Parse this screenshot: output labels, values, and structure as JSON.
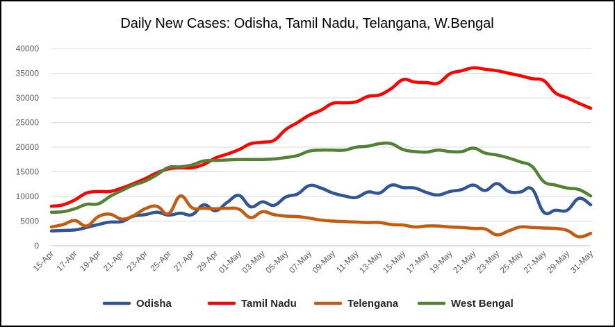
{
  "chart_data": {
    "type": "line",
    "title": "Daily New Cases: Odisha, Tamil Nadu, Telangana, W.Bengal",
    "xlabel": "",
    "ylabel": "",
    "ylim": [
      0,
      40000
    ],
    "yticks": [
      "0",
      "5000",
      "10000",
      "15000",
      "20000",
      "25000",
      "30000",
      "35000",
      "40000"
    ],
    "grid": true,
    "legend": "bottom",
    "x": [
      "15-Apr",
      "16-Apr",
      "17-Apr",
      "18-Apr",
      "19-Apr",
      "20-Apr",
      "21-Apr",
      "22-Apr",
      "23-Apr",
      "24-Apr",
      "25-Apr",
      "26-Apr",
      "27-Apr",
      "28-Apr",
      "29-Apr",
      "30-Apr",
      "01-May",
      "02-May",
      "03-May",
      "04-May",
      "05-May",
      "06-May",
      "07-May",
      "08-May",
      "09-May",
      "10-May",
      "11-May",
      "12-May",
      "13-May",
      "14-May",
      "15-May",
      "16-May",
      "17-May",
      "18-May",
      "19-May",
      "20-May",
      "21-May",
      "22-May",
      "23-May",
      "24-May",
      "25-May",
      "26-May",
      "27-May",
      "28-May",
      "29-May",
      "30-May",
      "31-May"
    ],
    "xtick_labels": [
      "15-Apr",
      "17-Apr",
      "19-Apr",
      "21-Apr",
      "23-Apr",
      "25-Apr",
      "27-Apr",
      "29-Apr",
      "01-May",
      "03-May",
      "05-May",
      "07-May",
      "09-May",
      "11-May",
      "13-May",
      "15-May",
      "17-May",
      "19-May",
      "21-May",
      "23-May",
      "25-May",
      "27-May",
      "29-May",
      "31-May"
    ],
    "series": [
      {
        "name": "Odisha",
        "color": "#2f5597",
        "values": [
          3000,
          3100,
          3200,
          3700,
          4300,
          4800,
          4900,
          6000,
          6300,
          6800,
          6200,
          6600,
          6300,
          8300,
          7100,
          8800,
          10200,
          7900,
          8900,
          8200,
          9900,
          10500,
          12200,
          11700,
          10700,
          10100,
          9800,
          10900,
          10700,
          12300,
          11800,
          11700,
          10800,
          10300,
          11000,
          11400,
          12300,
          11200,
          12600,
          11000,
          10900,
          11500,
          6800,
          7200,
          7200,
          9600,
          8300
        ]
      },
      {
        "name": "Tamil Nadu",
        "color": "#ff0000",
        "values": [
          8000,
          8300,
          9300,
          10700,
          11000,
          11000,
          11700,
          12600,
          13600,
          14800,
          15600,
          15800,
          15800,
          16500,
          17800,
          18600,
          19500,
          20700,
          21000,
          21400,
          23600,
          25000,
          26500,
          27500,
          28900,
          29000,
          29200,
          30300,
          30600,
          31900,
          33700,
          33200,
          33100,
          33000,
          34900,
          35500,
          36100,
          35800,
          35500,
          35000,
          34500,
          33900,
          33500,
          31000,
          30000,
          28900,
          27900
        ]
      },
      {
        "name": "Telengana",
        "color": "#c55a11",
        "values": [
          3800,
          4300,
          5100,
          4000,
          5900,
          6400,
          5400,
          6100,
          7500,
          8000,
          6500,
          10100,
          7700,
          7600,
          7500,
          7600,
          7400,
          5700,
          6900,
          6300,
          6000,
          5900,
          5600,
          5200,
          5000,
          4900,
          4800,
          4700,
          4700,
          4300,
          4200,
          3800,
          4000,
          4000,
          3800,
          3700,
          3500,
          3400,
          2200,
          3000,
          3800,
          3700,
          3600,
          3500,
          3100,
          1800,
          2500
        ]
      },
      {
        "name": "West Bengal",
        "color": "#548235",
        "values": [
          6800,
          6900,
          7500,
          8400,
          8500,
          10000,
          11200,
          12300,
          13100,
          14400,
          15900,
          16000,
          16400,
          17200,
          17300,
          17400,
          17500,
          17500,
          17500,
          17600,
          17900,
          18300,
          19200,
          19400,
          19400,
          19400,
          20000,
          20200,
          20700,
          20700,
          19500,
          19100,
          19000,
          19400,
          19100,
          19100,
          19800,
          18800,
          18400,
          17800,
          17000,
          16100,
          13000,
          12300,
          11700,
          11400,
          10100
        ]
      }
    ]
  }
}
